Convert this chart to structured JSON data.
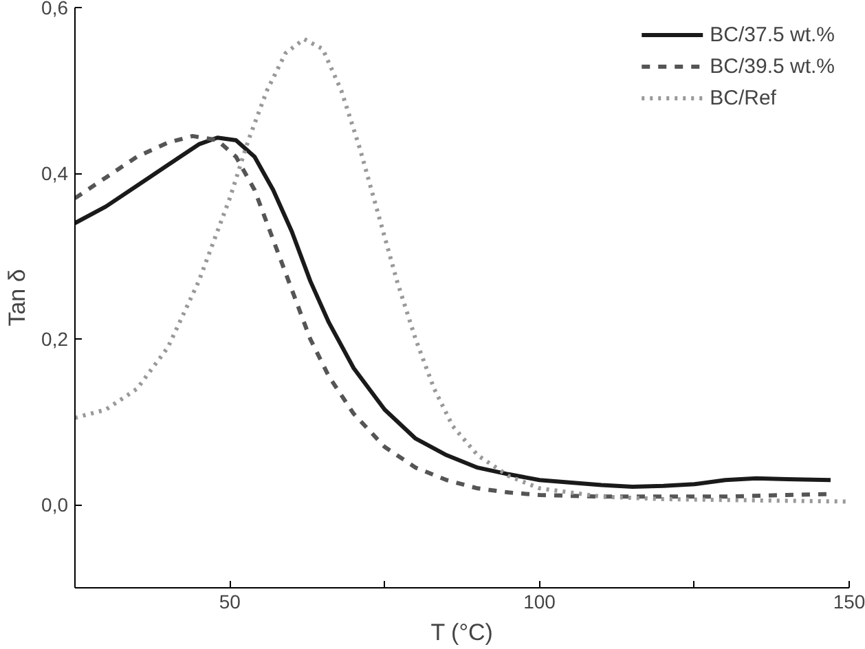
{
  "chart_data": {
    "type": "line",
    "xlabel": "T (°C)",
    "ylabel": "Tan δ",
    "xlim": [
      25,
      150
    ],
    "ylim": [
      -0.1,
      0.6
    ],
    "xticks": [
      50,
      {
        "value": 75,
        "label": null
      },
      100,
      {
        "value": 125,
        "label": null
      },
      150
    ],
    "yticks": [
      {
        "value": 0,
        "label": "0,0"
      },
      {
        "value": 0.2,
        "label": "0,2"
      },
      {
        "value": 0.4,
        "label": "0,4"
      },
      {
        "value": 0.6,
        "label": "0,6"
      }
    ],
    "grid": false,
    "legend": "top right",
    "series": [
      {
        "name": "BC/37.5 wt.%",
        "color": "#1a1a1a",
        "line_style": "solid",
        "x": [
          25,
          30,
          35,
          40,
          45,
          48,
          51,
          54,
          57,
          60,
          63,
          66,
          70,
          75,
          80,
          85,
          90,
          95,
          100,
          110,
          115,
          120,
          125,
          130,
          135,
          140,
          147
        ],
        "values": [
          0.34,
          0.36,
          0.385,
          0.41,
          0.435,
          0.443,
          0.44,
          0.42,
          0.38,
          0.33,
          0.27,
          0.22,
          0.165,
          0.115,
          0.08,
          0.06,
          0.045,
          0.037,
          0.03,
          0.024,
          0.022,
          0.023,
          0.025,
          0.03,
          0.032,
          0.031,
          0.03
        ]
      },
      {
        "name": "BC/39.5 wt.%",
        "color": "#555555",
        "line_style": "dashed",
        "x": [
          25,
          30,
          35,
          40,
          44,
          48,
          51,
          54,
          57,
          60,
          63,
          66,
          70,
          75,
          80,
          85,
          90,
          95,
          100,
          110,
          120,
          130,
          140,
          147
        ],
        "values": [
          0.37,
          0.395,
          0.42,
          0.437,
          0.445,
          0.44,
          0.42,
          0.38,
          0.32,
          0.26,
          0.2,
          0.155,
          0.11,
          0.07,
          0.045,
          0.03,
          0.02,
          0.015,
          0.012,
          0.01,
          0.01,
          0.01,
          0.012,
          0.013
        ]
      },
      {
        "name": "BC/Ref",
        "color": "#999999",
        "line_style": "dotted",
        "x": [
          25,
          30,
          35,
          40,
          45,
          50,
          53,
          56,
          59,
          62,
          65,
          68,
          71,
          74,
          77,
          80,
          83,
          86,
          90,
          95,
          100,
          110,
          120,
          130,
          140,
          150
        ],
        "values": [
          0.105,
          0.115,
          0.14,
          0.19,
          0.27,
          0.37,
          0.44,
          0.5,
          0.545,
          0.562,
          0.55,
          0.5,
          0.43,
          0.35,
          0.27,
          0.2,
          0.14,
          0.095,
          0.06,
          0.035,
          0.02,
          0.01,
          0.007,
          0.006,
          0.005,
          0.004
        ]
      }
    ]
  }
}
